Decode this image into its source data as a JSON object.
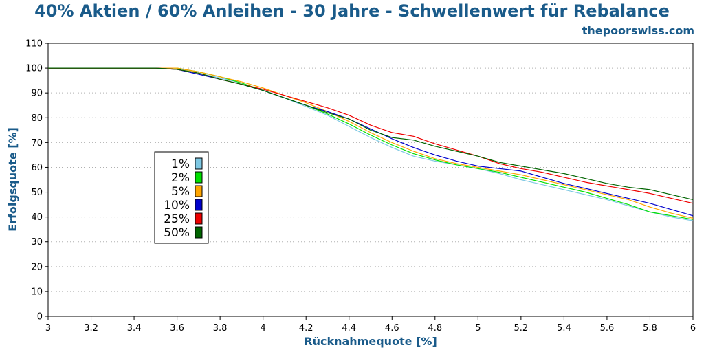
{
  "colors": {
    "title": "#1a5b8a",
    "grid": "#b0b0b0",
    "axis": "#000000",
    "background": "#ffffff"
  },
  "chart_data": {
    "type": "line",
    "title": "40% Aktien / 60% Anleihen - 30 Jahre - Schwellenwert für Rebalance",
    "subtitle": "thepoorswiss.com",
    "xlabel": "Rücknahmequote [%]",
    "ylabel": "Erfolgsquote [%]",
    "xlim": [
      3,
      6
    ],
    "ylim": [
      0,
      110
    ],
    "x_ticks": [
      3,
      3.2,
      3.4,
      3.6,
      3.8,
      4,
      4.2,
      4.4,
      4.6,
      4.8,
      5,
      5.2,
      5.4,
      5.6,
      5.8,
      6
    ],
    "x_tick_labels": [
      "3",
      "3.2",
      "3.4",
      "3.6",
      "3.8",
      "4",
      "4.2",
      "4.4",
      "4.6",
      "4.8",
      "5",
      "5.2",
      "5.4",
      "5.6",
      "5.8",
      "6"
    ],
    "y_ticks": [
      0,
      10,
      20,
      30,
      40,
      50,
      60,
      70,
      80,
      90,
      100,
      110
    ],
    "y_tick_labels": [
      "0",
      "10",
      "20",
      "30",
      "40",
      "50",
      "60",
      "70",
      "80",
      "90",
      "100",
      "110"
    ],
    "grid": "horizontal dotted",
    "legend_position": "left-middle",
    "x": [
      3.0,
      3.5,
      3.6,
      3.7,
      3.8,
      3.9,
      4.0,
      4.1,
      4.2,
      4.3,
      4.4,
      4.5,
      4.6,
      4.7,
      4.8,
      4.9,
      5.0,
      5.1,
      5.2,
      5.3,
      5.4,
      5.5,
      5.6,
      5.7,
      5.8,
      5.9,
      6.0
    ],
    "series": [
      {
        "name": "1%",
        "color": "#7ec8e3",
        "values": [
          100,
          100,
          99.5,
          98,
          96,
          94,
          91,
          88,
          84.5,
          81,
          76.5,
          72,
          68,
          64.5,
          62.5,
          61,
          59.5,
          57.5,
          55,
          53,
          51,
          49,
          47,
          44.5,
          42,
          40,
          38.5
        ]
      },
      {
        "name": "2%",
        "color": "#00e000",
        "values": [
          100,
          100,
          100,
          98.5,
          96.5,
          94,
          91,
          88,
          85,
          81.5,
          77.5,
          73,
          69,
          65.5,
          63,
          61,
          59.5,
          58,
          56,
          54,
          52,
          50,
          47.5,
          45,
          42,
          40.5,
          39
        ]
      },
      {
        "name": "5%",
        "color": "#ffa500",
        "values": [
          100,
          100,
          100,
          98.5,
          96.5,
          94.5,
          92,
          89,
          86,
          82.5,
          78.5,
          74,
          70,
          66.5,
          63.5,
          61.5,
          60,
          58.5,
          57,
          55,
          53,
          51,
          49,
          47,
          44,
          41.5,
          39.5
        ]
      },
      {
        "name": "10%",
        "color": "#0000cc",
        "values": [
          100,
          100,
          99.5,
          97.5,
          95.5,
          93.5,
          91,
          88,
          85,
          82.5,
          79.5,
          75.5,
          71.5,
          68,
          65,
          62.5,
          60.5,
          59.5,
          58.5,
          56,
          53.5,
          51.5,
          49.5,
          47.5,
          45.5,
          43,
          40.5
        ]
      },
      {
        "name": "25%",
        "color": "#ee0000",
        "values": [
          100,
          100,
          99.5,
          98,
          95.5,
          93.5,
          91.5,
          89,
          86.5,
          84,
          81,
          77,
          74,
          72.5,
          69.5,
          67,
          64.5,
          61.5,
          59.5,
          58,
          56,
          54,
          52.5,
          51,
          49.5,
          47.5,
          45.5
        ]
      },
      {
        "name": "50%",
        "color": "#006400",
        "values": [
          100,
          100,
          99.5,
          98,
          95.5,
          93.5,
          91,
          88,
          85,
          82,
          79.5,
          75,
          72,
          71,
          68.5,
          66.5,
          64.5,
          62,
          60.5,
          59,
          57.5,
          55.5,
          53.5,
          52,
          51,
          49,
          47
        ]
      }
    ]
  }
}
